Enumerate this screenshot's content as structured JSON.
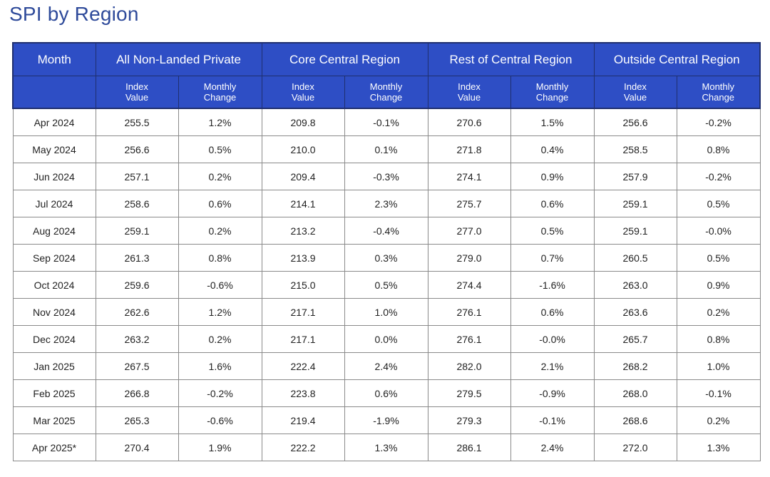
{
  "title": "SPI by Region",
  "chart_data": {
    "type": "table",
    "title": "SPI by Region",
    "columns": [
      "Month",
      "All Non-Landed Private",
      "Core Central Region",
      "Rest of Central Region",
      "Outside Central Region"
    ],
    "sub_columns": [
      {
        "line1": "Index",
        "line2": "Value"
      },
      {
        "line1": "Monthly",
        "line2": "Change"
      }
    ],
    "rows": [
      {
        "month": "Apr 2024",
        "cells": [
          "255.5",
          "1.2%",
          "209.8",
          "-0.1%",
          "270.6",
          "1.5%",
          "256.6",
          "-0.2%"
        ]
      },
      {
        "month": "May 2024",
        "cells": [
          "256.6",
          "0.5%",
          "210.0",
          "0.1%",
          "271.8",
          "0.4%",
          "258.5",
          "0.8%"
        ]
      },
      {
        "month": "Jun 2024",
        "cells": [
          "257.1",
          "0.2%",
          "209.4",
          "-0.3%",
          "274.1",
          "0.9%",
          "257.9",
          "-0.2%"
        ]
      },
      {
        "month": "Jul 2024",
        "cells": [
          "258.6",
          "0.6%",
          "214.1",
          "2.3%",
          "275.7",
          "0.6%",
          "259.1",
          "0.5%"
        ]
      },
      {
        "month": "Aug 2024",
        "cells": [
          "259.1",
          "0.2%",
          "213.2",
          "-0.4%",
          "277.0",
          "0.5%",
          "259.1",
          "-0.0%"
        ]
      },
      {
        "month": "Sep 2024",
        "cells": [
          "261.3",
          "0.8%",
          "213.9",
          "0.3%",
          "279.0",
          "0.7%",
          "260.5",
          "0.5%"
        ]
      },
      {
        "month": "Oct 2024",
        "cells": [
          "259.6",
          "-0.6%",
          "215.0",
          "0.5%",
          "274.4",
          "-1.6%",
          "263.0",
          "0.9%"
        ]
      },
      {
        "month": "Nov 2024",
        "cells": [
          "262.6",
          "1.2%",
          "217.1",
          "1.0%",
          "276.1",
          "0.6%",
          "263.6",
          "0.2%"
        ]
      },
      {
        "month": "Dec 2024",
        "cells": [
          "263.2",
          "0.2%",
          "217.1",
          "0.0%",
          "276.1",
          "-0.0%",
          "265.7",
          "0.8%"
        ]
      },
      {
        "month": "Jan 2025",
        "cells": [
          "267.5",
          "1.6%",
          "222.4",
          "2.4%",
          "282.0",
          "2.1%",
          "268.2",
          "1.0%"
        ]
      },
      {
        "month": "Feb 2025",
        "cells": [
          "266.8",
          "-0.2%",
          "223.8",
          "0.6%",
          "279.5",
          "-0.9%",
          "268.0",
          "-0.1%"
        ]
      },
      {
        "month": "Mar 2025",
        "cells": [
          "265.3",
          "-0.6%",
          "219.4",
          "-1.9%",
          "279.3",
          "-0.1%",
          "268.6",
          "0.2%"
        ]
      },
      {
        "month": "Apr 2025*",
        "cells": [
          "270.4",
          "1.9%",
          "222.2",
          "1.3%",
          "286.1",
          "2.4%",
          "272.0",
          "1.3%"
        ]
      }
    ]
  },
  "colors": {
    "title": "#2e4a9a",
    "header_bg": "#2e4ec5",
    "header_text": "#ffffff",
    "grid": "#8a8a8a"
  }
}
